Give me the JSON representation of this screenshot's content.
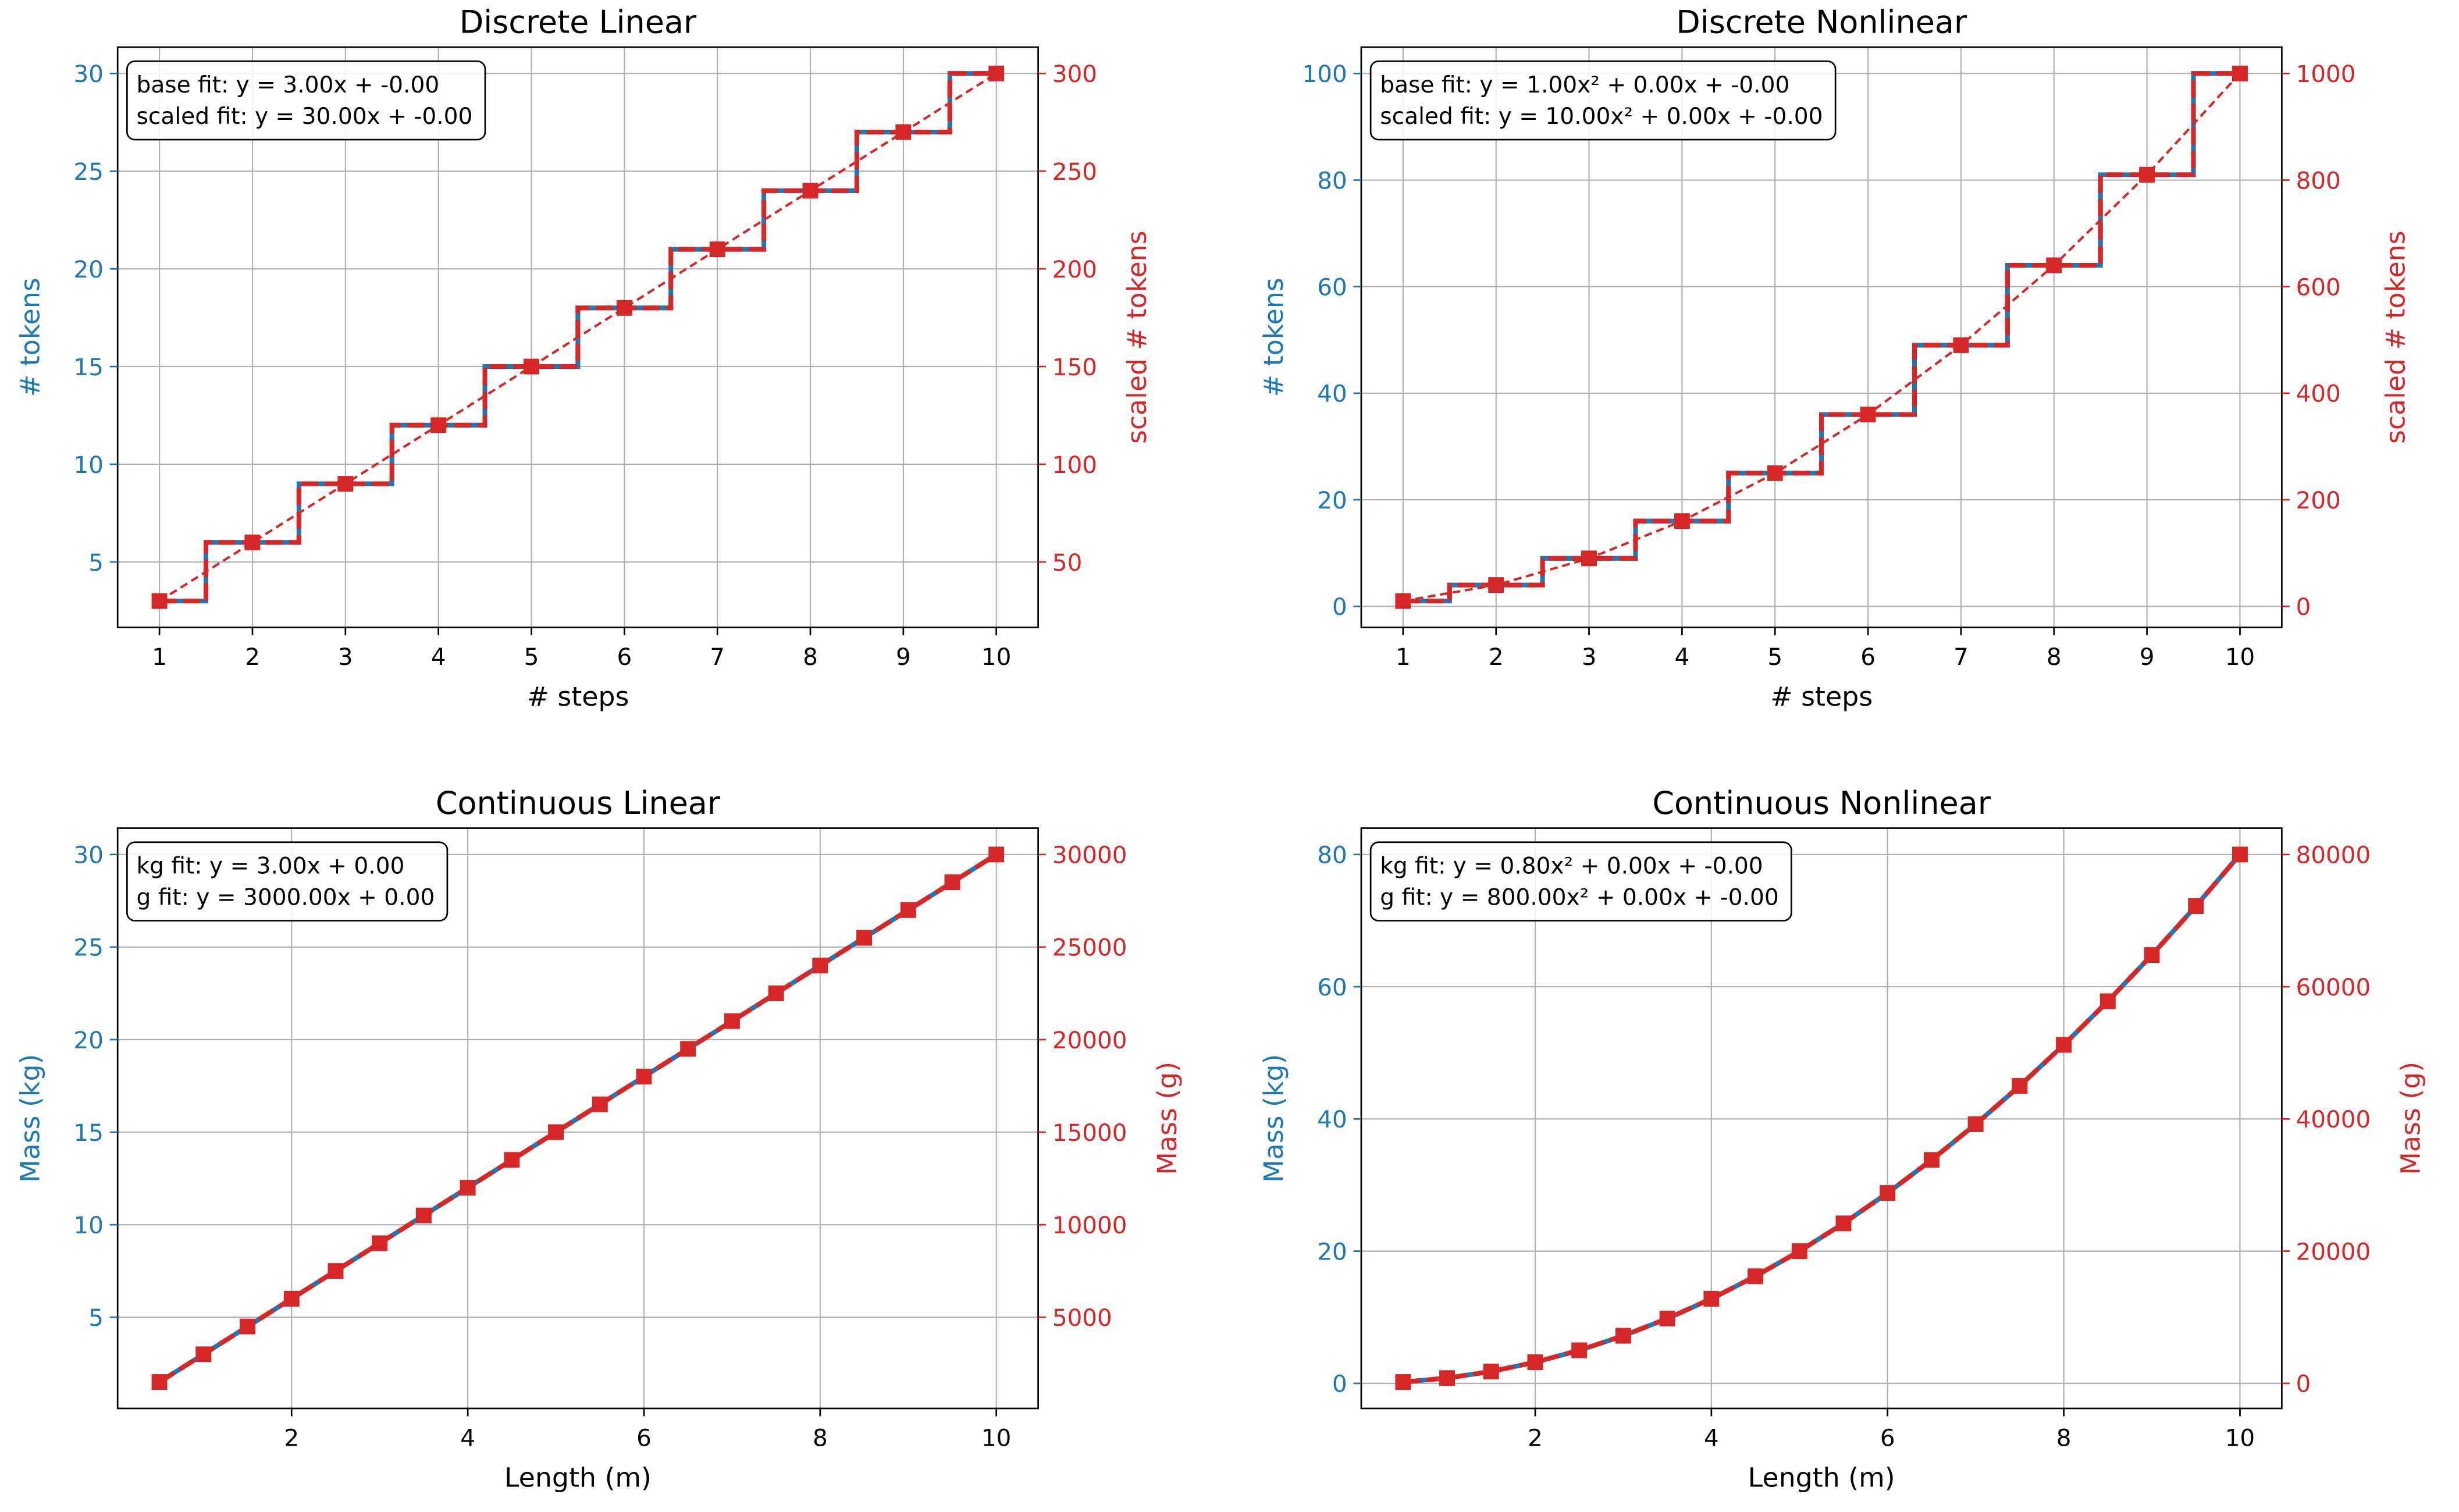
{
  "colors": {
    "base": "#1f77b4",
    "scaled": "#d62728",
    "grid": "#b0b0b0"
  },
  "chart_data": [
    {
      "type": "line",
      "title": "Discrete Linear",
      "xlabel": "# steps",
      "ylabel": "# tokens",
      "ylabel_right": "scaled # tokens",
      "step": true,
      "grid": true,
      "legend_placement": "top-left",
      "legend": [
        "base fit: y = 3.00x + -0.00",
        "scaled fit: y = 30.00x + -0.00"
      ],
      "x": [
        1,
        2,
        3,
        4,
        5,
        6,
        7,
        8,
        9,
        10
      ],
      "series": [
        {
          "axis": "left",
          "values": [
            3,
            6,
            9,
            12,
            15,
            18,
            21,
            24,
            27,
            30
          ]
        },
        {
          "axis": "right",
          "values": [
            30,
            60,
            90,
            120,
            150,
            180,
            210,
            240,
            270,
            300
          ]
        }
      ],
      "xlim": [
        0.55,
        10.45
      ],
      "ylim": [
        1.65,
        31.35
      ],
      "y2lim": [
        16.5,
        313.5
      ],
      "xticks": [
        1,
        2,
        3,
        4,
        5,
        6,
        7,
        8,
        9,
        10
      ],
      "yticks": [
        5,
        10,
        15,
        20,
        25,
        30
      ],
      "y2ticks": [
        50,
        100,
        150,
        200,
        250,
        300
      ]
    },
    {
      "type": "line",
      "title": "Discrete Nonlinear",
      "xlabel": "# steps",
      "ylabel": "# tokens",
      "ylabel_right": "scaled # tokens",
      "step": true,
      "grid": true,
      "legend_placement": "top-left",
      "legend": [
        "base fit: y = 1.00x² + 0.00x + -0.00",
        "scaled fit: y = 10.00x² + 0.00x + -0.00"
      ],
      "x": [
        1,
        2,
        3,
        4,
        5,
        6,
        7,
        8,
        9,
        10
      ],
      "series": [
        {
          "axis": "left",
          "values": [
            1,
            4,
            9,
            16,
            25,
            36,
            49,
            64,
            81,
            100
          ]
        },
        {
          "axis": "right",
          "values": [
            10,
            40,
            90,
            160,
            250,
            360,
            490,
            640,
            810,
            1000
          ]
        }
      ],
      "xlim": [
        0.55,
        10.45
      ],
      "ylim": [
        -3.95,
        104.95
      ],
      "y2lim": [
        -39.5,
        1049.5
      ],
      "xticks": [
        1,
        2,
        3,
        4,
        5,
        6,
        7,
        8,
        9,
        10
      ],
      "yticks": [
        0,
        20,
        40,
        60,
        80,
        100
      ],
      "y2ticks": [
        0,
        200,
        400,
        600,
        800,
        1000
      ]
    },
    {
      "type": "line",
      "title": "Continuous Linear",
      "xlabel": "Length (m)",
      "ylabel": "Mass (kg)",
      "ylabel_right": "Mass (g)",
      "step": false,
      "grid": true,
      "legend_placement": "top-left",
      "legend": [
        "kg fit: y = 3.00x + 0.00",
        "g fit: y = 3000.00x + 0.00"
      ],
      "x": [
        0.5,
        1,
        1.5,
        2,
        2.5,
        3,
        3.5,
        4,
        4.5,
        5,
        5.5,
        6,
        6.5,
        7,
        7.5,
        8,
        8.5,
        9,
        9.5,
        10
      ],
      "series": [
        {
          "axis": "left",
          "values": [
            1.5,
            3,
            4.5,
            6,
            7.5,
            9,
            10.5,
            12,
            13.5,
            15,
            16.5,
            18,
            19.5,
            21,
            22.5,
            24,
            25.5,
            27,
            28.5,
            30
          ]
        },
        {
          "axis": "right",
          "values": [
            1500,
            3000,
            4500,
            6000,
            7500,
            9000,
            10500,
            12000,
            13500,
            15000,
            16500,
            18000,
            19500,
            21000,
            22500,
            24000,
            25500,
            27000,
            28500,
            30000
          ]
        }
      ],
      "xlim": [
        0.025,
        10.475
      ],
      "ylim": [
        0.075,
        31.425
      ],
      "y2lim": [
        75,
        31425
      ],
      "xticks": [
        2,
        4,
        6,
        8,
        10
      ],
      "yticks": [
        5,
        10,
        15,
        20,
        25,
        30
      ],
      "y2ticks": [
        5000,
        10000,
        15000,
        20000,
        25000,
        30000
      ]
    },
    {
      "type": "line",
      "title": "Continuous Nonlinear",
      "xlabel": "Length (m)",
      "ylabel": "Mass (kg)",
      "ylabel_right": "Mass (g)",
      "step": false,
      "grid": true,
      "legend_placement": "top-left",
      "legend": [
        "kg fit: y = 0.80x² + 0.00x + -0.00",
        "g fit: y = 800.00x² + 0.00x + -0.00"
      ],
      "x": [
        0.5,
        1,
        1.5,
        2,
        2.5,
        3,
        3.5,
        4,
        4.5,
        5,
        5.5,
        6,
        6.5,
        7,
        7.5,
        8,
        8.5,
        9,
        9.5,
        10
      ],
      "series": [
        {
          "axis": "left",
          "values": [
            0.2,
            0.8,
            1.8,
            3.2,
            5,
            7.2,
            9.8,
            12.8,
            16.2,
            20,
            24.2,
            28.8,
            33.8,
            39.2,
            45,
            51.2,
            57.8,
            64.8,
            72.2,
            80
          ]
        },
        {
          "axis": "right",
          "values": [
            200,
            800,
            1800,
            3200,
            5000,
            7200,
            9800,
            12800,
            16200,
            20000,
            24200,
            28800,
            33800,
            39200,
            45000,
            51200,
            57800,
            64800,
            72200,
            80000
          ]
        }
      ],
      "xlim": [
        0.025,
        10.475
      ],
      "ylim": [
        -3.79,
        83.99
      ],
      "y2lim": [
        -3790,
        83990
      ],
      "xticks": [
        2,
        4,
        6,
        8,
        10
      ],
      "yticks": [
        0,
        20,
        40,
        60,
        80
      ],
      "y2ticks": [
        0,
        20000,
        40000,
        60000,
        80000
      ]
    }
  ]
}
